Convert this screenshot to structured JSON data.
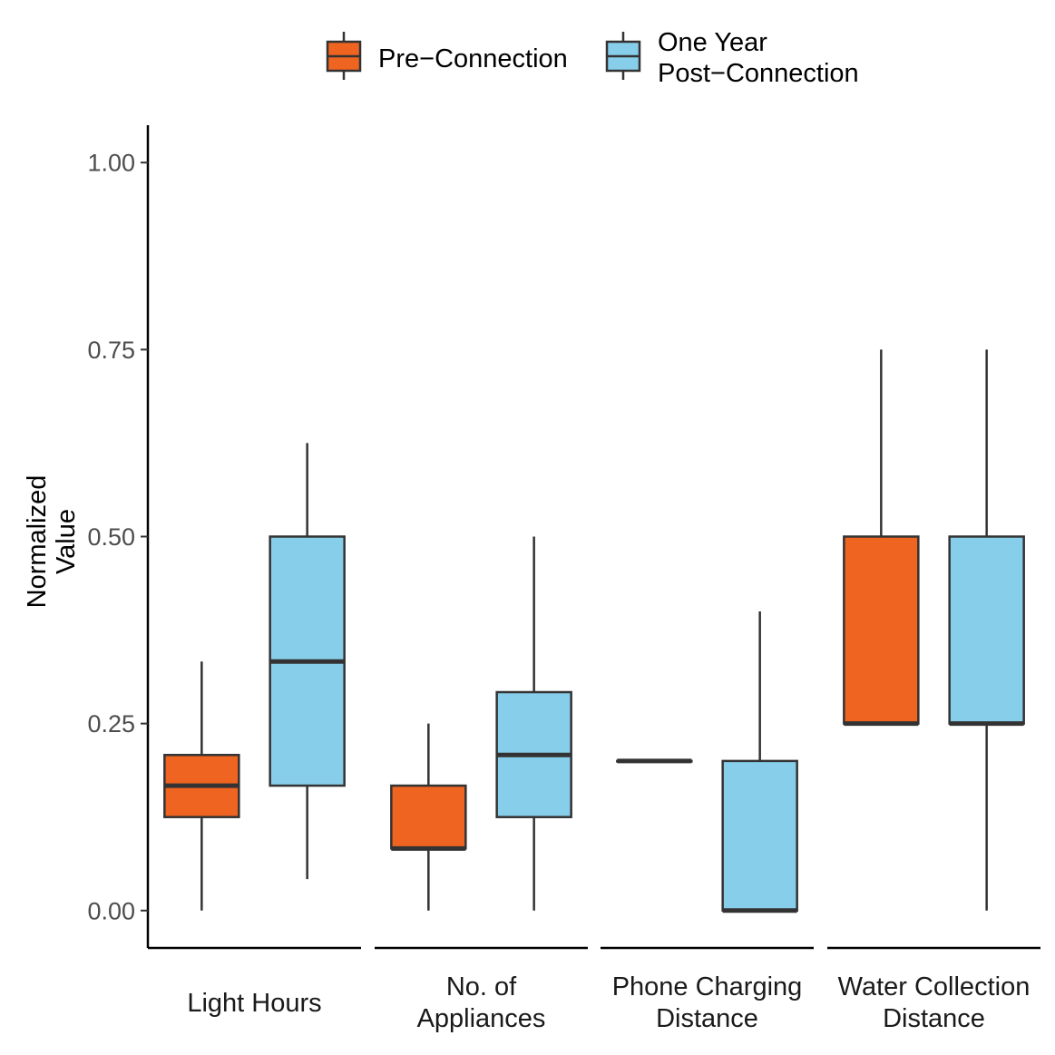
{
  "chart_data": {
    "type": "boxplot",
    "title": "",
    "ylabel": [
      "Normalized",
      "Value"
    ],
    "xlabel": "",
    "ylim": [
      -0.05,
      1.05
    ],
    "yticks": [
      "0.00",
      "0.25",
      "0.50",
      "0.75",
      "1.00"
    ],
    "ytick_values": [
      0,
      0.25,
      0.5,
      0.75,
      1.0
    ],
    "categories": [
      [
        "Light Hours"
      ],
      [
        "No. of",
        "Appliances"
      ],
      [
        "Phone Charging",
        "Distance"
      ],
      [
        "Water Collection",
        "Distance"
      ]
    ],
    "legend": {
      "position": "top",
      "entries": [
        {
          "label": [
            "Pre−Connection"
          ],
          "color": "#EE6420"
        },
        {
          "label": [
            "One Year",
            "Post−Connection"
          ],
          "color": "#87CEEB"
        }
      ]
    },
    "series": [
      {
        "color": "#EE6420",
        "boxes": [
          {
            "min": 0.0,
            "q1": 0.125,
            "median": 0.167,
            "q3": 0.208,
            "max": 0.333
          },
          {
            "min": 0.0,
            "q1": 0.083,
            "median": 0.083,
            "q3": 0.167,
            "max": 0.25
          },
          {
            "min": 0.2,
            "q1": 0.2,
            "median": 0.2,
            "q3": 0.2,
            "max": 0.2
          },
          {
            "min": 0.25,
            "q1": 0.25,
            "median": 0.25,
            "q3": 0.5,
            "max": 0.75
          }
        ]
      },
      {
        "color": "#87CEEB",
        "boxes": [
          {
            "min": 0.042,
            "q1": 0.167,
            "median": 0.333,
            "q3": 0.5,
            "max": 0.625
          },
          {
            "min": 0.0,
            "q1": 0.125,
            "median": 0.208,
            "q3": 0.292,
            "max": 0.5
          },
          {
            "min": 0.0,
            "q1": 0.0,
            "median": 0.0,
            "q3": 0.2,
            "max": 0.4
          },
          {
            "min": 0.0,
            "q1": 0.25,
            "median": 0.25,
            "q3": 0.5,
            "max": 0.75
          }
        ]
      }
    ],
    "grid": false
  }
}
